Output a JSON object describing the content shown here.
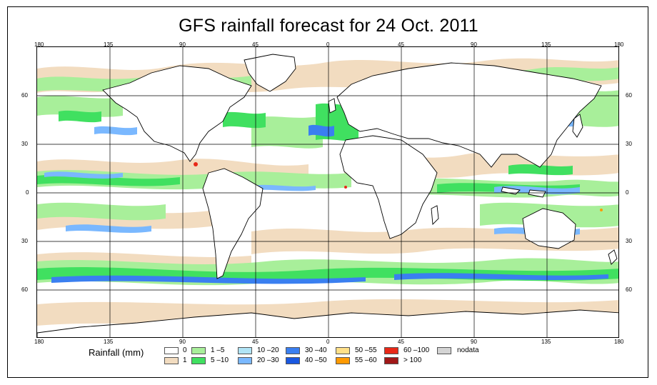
{
  "title": "GFS rainfall forecast for 24 Oct. 2011",
  "map": {
    "lon_ticks_top": [
      "180",
      "135",
      "90",
      "45",
      "0",
      "45",
      "90",
      "135",
      "180"
    ],
    "lon_ticks_bottom": [
      "180",
      "135",
      "90",
      "45",
      "0",
      "45",
      "90",
      "135",
      "180"
    ],
    "lat_ticks_left": [
      "60",
      "30",
      "0",
      "30",
      "60"
    ],
    "lat_ticks_right": [
      "60",
      "30",
      "0",
      "30",
      "60"
    ],
    "colors": {
      "ocean_bg": "#ffffff",
      "land_outline": "#000000",
      "rain_1": "#f2dcc0",
      "rain_1_5": "#a8ef9a",
      "rain_5_10": "#40e060",
      "rain_10_20": "#a8ddf0",
      "rain_20_30": "#7ab8ff",
      "rain_30_40": "#4488ee",
      "rain_40_50": "#1f5fe0",
      "rain_heavy": "#e83020"
    }
  },
  "legend": {
    "title": "Rainfall (mm)",
    "items": [
      {
        "label": "0",
        "color": "#ffffff"
      },
      {
        "label": "1",
        "color": "#f2dcc0"
      },
      {
        "label": "1 –5",
        "color": "#a8ef9a"
      },
      {
        "label": "5 –10",
        "color": "#40e060"
      },
      {
        "label": "10 –20",
        "color": "#b0e4f6"
      },
      {
        "label": "20 –30",
        "color": "#7ab8ff"
      },
      {
        "label": "30 –40",
        "color": "#3a7ff0"
      },
      {
        "label": "40 –50",
        "color": "#1a58e0"
      },
      {
        "label": "50 –55",
        "color": "#ffe088"
      },
      {
        "label": "55 –60",
        "color": "#ff9a00"
      },
      {
        "label": "60 –100",
        "color": "#e82818"
      },
      {
        "label": "> 100",
        "color": "#a01818"
      },
      {
        "label": "nodata",
        "color": "#d4d4d4"
      }
    ]
  }
}
